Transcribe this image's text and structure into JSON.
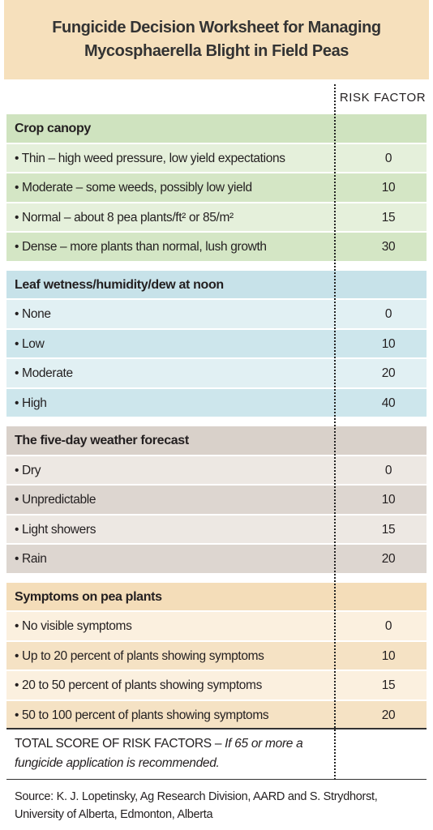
{
  "title": [
    "Fungicide Decision Worksheet for Managing",
    "Mycosphaerella Blight in Field Peas"
  ],
  "column_header": "RISK FACTOR",
  "sections": [
    {
      "heading": "Crop canopy",
      "rows": [
        {
          "label": "• Thin – high weed pressure, low yield expectations",
          "risk": 0
        },
        {
          "label": "• Moderate – some weeds, possibly low yield",
          "risk": 10
        },
        {
          "label": "• Normal – about 8 pea plants/ft² or 85/m²",
          "risk": 15
        },
        {
          "label": "• Dense  – more plants than normal, lush growth",
          "risk": 30
        }
      ]
    },
    {
      "heading": "Leaf wetness/humidity/dew at noon",
      "rows": [
        {
          "label": "• None",
          "risk": 0
        },
        {
          "label": "• Low",
          "risk": 10
        },
        {
          "label": "• Moderate",
          "risk": 20
        },
        {
          "label": "• High",
          "risk": 40
        }
      ]
    },
    {
      "heading": "The five-day weather forecast",
      "rows": [
        {
          "label": "• Dry",
          "risk": 0
        },
        {
          "label": "• Unpredictable",
          "risk": 10
        },
        {
          "label": "• Light showers",
          "risk": 15
        },
        {
          "label": "• Rain",
          "risk": 20
        }
      ]
    },
    {
      "heading": "Symptoms on pea plants",
      "rows": [
        {
          "label": "• No visible symptoms",
          "risk": 0
        },
        {
          "label": "• Up to 20 percent of plants showing symptoms",
          "risk": 10
        },
        {
          "label": "• 20 to 50 percent of plants showing symptoms",
          "risk": 15
        },
        {
          "label": "• 50 to 100 percent of plants showing symptoms",
          "risk": 20
        }
      ]
    }
  ],
  "total": {
    "label": "TOTAL SCORE OF RISK FACTORS – ",
    "note": "If 65 or more a fungicide application is recommended."
  },
  "source": [
    "Source: K. J. Lopetinsky, Ag Research Division, AARD and S. Strydhorst,",
    "University of Alberta, Edmonton, Alberta"
  ]
}
